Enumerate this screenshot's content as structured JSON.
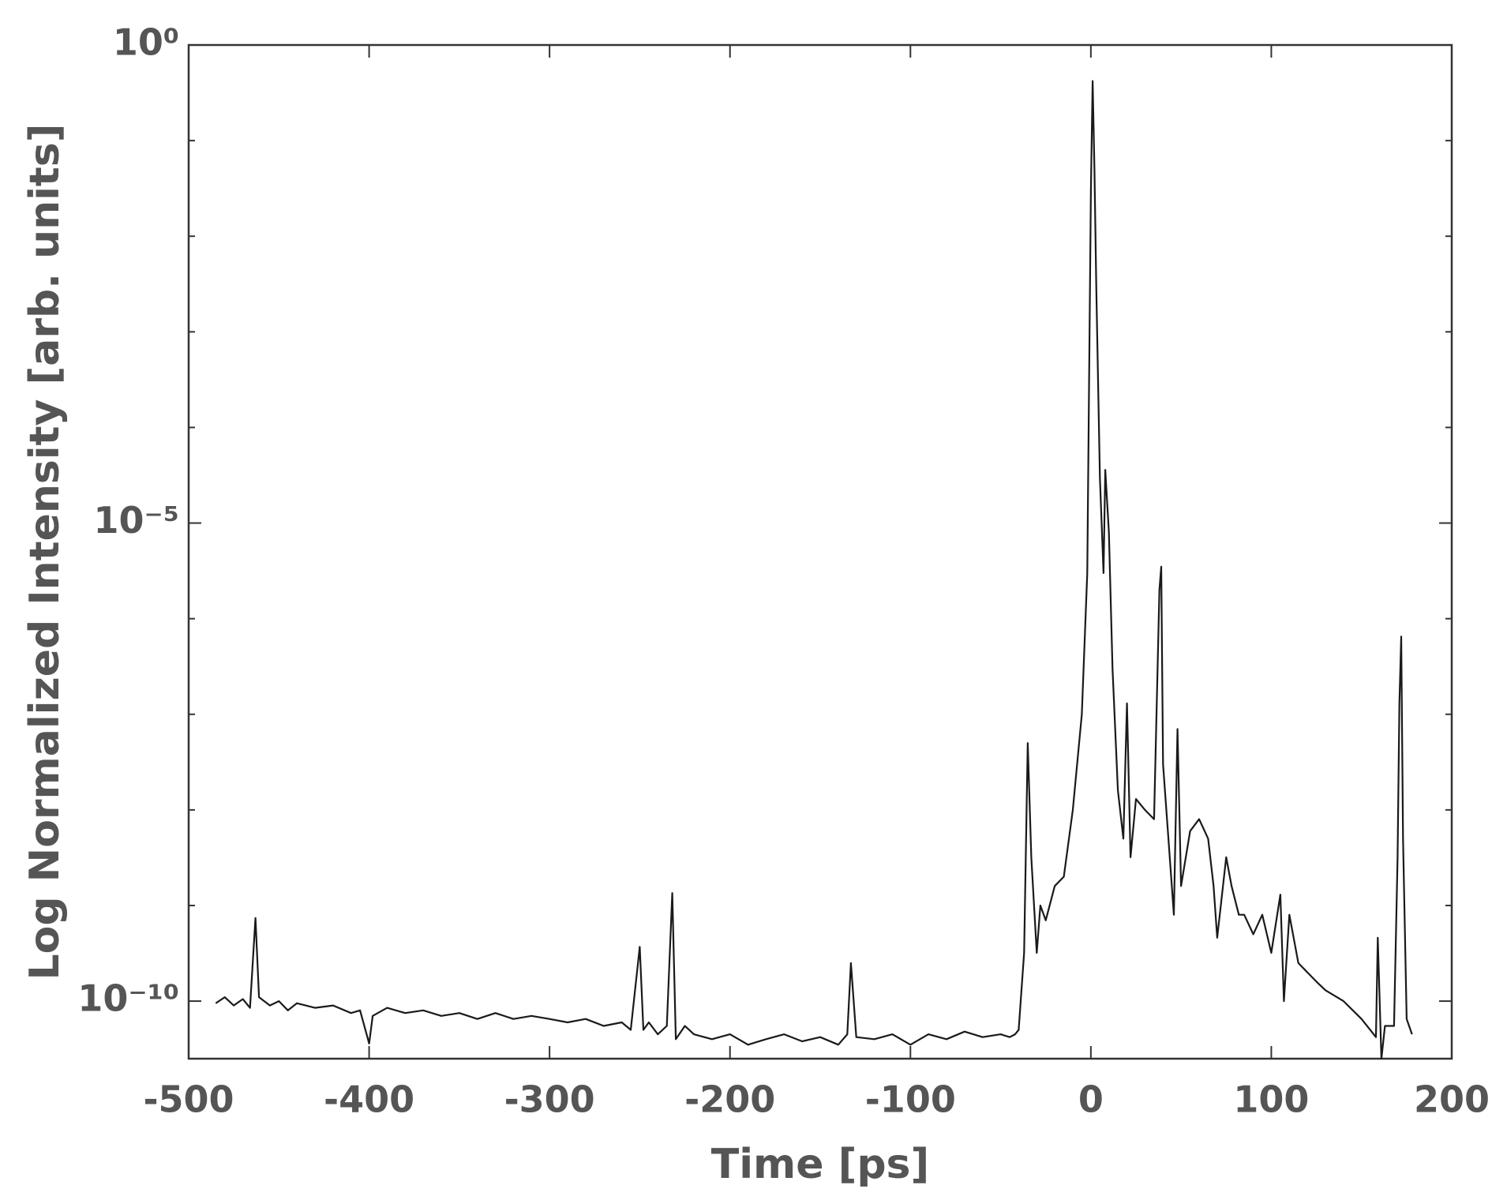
{
  "chart_data": {
    "type": "line",
    "x_label": "Time [ps]",
    "y_label": "Log Normalized Intensity [arb. units]",
    "color": "#1a1a1a",
    "log_y": true,
    "xlim": [
      -500,
      200
    ],
    "xticks": [
      -500,
      -400,
      -300,
      -200,
      -100,
      0,
      100,
      200
    ],
    "ylim": [
      2.5e-11,
      1
    ],
    "yticks": [
      {
        "value": 1e-10,
        "label": "10⁻¹⁰"
      },
      {
        "value": 1e-05,
        "label": "10⁻⁵"
      },
      {
        "value": 1,
        "label": "10⁰"
      }
    ],
    "yminorticks": [
      1e-09,
      1e-08,
      1e-07,
      1e-06,
      0.0001,
      0.001,
      0.01,
      0.1
    ],
    "x": [
      -485,
      -480,
      -475,
      -470,
      -466,
      -463,
      -461,
      -455,
      -450,
      -445,
      -440,
      -430,
      -420,
      -410,
      -405,
      -400,
      -398,
      -390,
      -380,
      -370,
      -360,
      -350,
      -340,
      -330,
      -320,
      -310,
      -300,
      -290,
      -280,
      -270,
      -260,
      -255,
      -250,
      -248,
      -245,
      -240,
      -235,
      -232,
      -230,
      -225,
      -220,
      -210,
      -200,
      -190,
      -180,
      -170,
      -160,
      -150,
      -140,
      -135,
      -133,
      -130,
      -120,
      -110,
      -100,
      -90,
      -80,
      -70,
      -60,
      -50,
      -45,
      -42,
      -40,
      -37,
      -35,
      -33,
      -30,
      -28,
      -25,
      -20,
      -15,
      -10,
      -5,
      -2,
      0,
      1,
      2,
      3,
      5,
      7,
      8,
      10,
      12,
      15,
      18,
      20,
      22,
      25,
      30,
      35,
      38,
      39,
      40,
      43,
      46,
      48,
      50,
      55,
      60,
      65,
      68,
      70,
      75,
      78,
      82,
      85,
      90,
      95,
      100,
      105,
      107,
      110,
      115,
      120,
      125,
      130,
      140,
      150,
      158,
      159,
      161,
      163,
      168,
      170,
      171,
      172,
      173,
      175,
      178
    ],
    "values": [
      9.5e-11,
      1.1e-10,
      9e-11,
      1.05e-10,
      8.5e-11,
      7.4e-10,
      1.1e-10,
      9e-11,
      1e-10,
      8e-11,
      9.5e-11,
      8.5e-11,
      9e-11,
      7.5e-11,
      8e-11,
      3.6e-11,
      7e-11,
      8.5e-11,
      7.5e-11,
      8e-11,
      7e-11,
      7.5e-11,
      6.5e-11,
      7.5e-11,
      6.5e-11,
      7e-11,
      6.5e-11,
      6e-11,
      6.5e-11,
      5.5e-11,
      6e-11,
      5e-11,
      3.7e-10,
      5e-11,
      6e-11,
      4.5e-11,
      5.5e-11,
      1.35e-09,
      4e-11,
      5.5e-11,
      4.5e-11,
      4e-11,
      4.5e-11,
      3.5e-11,
      4e-11,
      4.5e-11,
      3.8e-11,
      4.2e-11,
      3.5e-11,
      4.5e-11,
      2.5e-10,
      4.2e-11,
      4e-11,
      4.5e-11,
      3.5e-11,
      4.5e-11,
      4e-11,
      4.8e-11,
      4.2e-11,
      4.5e-11,
      4.2e-11,
      4.5e-11,
      5e-11,
      3.2e-10,
      5e-08,
      3.2e-09,
      3.2e-10,
      1e-09,
      7e-10,
      1.6e-09,
      2e-09,
      1e-08,
      1e-07,
      3e-06,
      0.03,
      0.42,
      0.05,
      0.003,
      3e-05,
      3e-06,
      3.6e-05,
      8e-06,
      3e-07,
      1.6e-08,
      5e-09,
      1.3e-07,
      3.2e-09,
      1.3e-08,
      1e-08,
      8e-09,
      2e-06,
      3.5e-06,
      3e-08,
      5e-09,
      8e-10,
      7e-08,
      1.6e-09,
      6e-09,
      8e-09,
      5e-09,
      1.6e-09,
      4.6e-10,
      3.2e-09,
      1.6e-09,
      8e-10,
      8e-10,
      5e-10,
      8e-10,
      3.2e-10,
      1.3e-09,
      1e-10,
      8e-10,
      2.5e-10,
      2e-10,
      1.6e-10,
      1.3e-10,
      1e-10,
      6.5e-11,
      4.2e-11,
      4.6e-10,
      2.5e-11,
      5.5e-11,
      5.5e-11,
      3.2e-09,
      1.3e-07,
      6.5e-07,
      5e-09,
      6.5e-11,
      4.5e-11
    ]
  }
}
